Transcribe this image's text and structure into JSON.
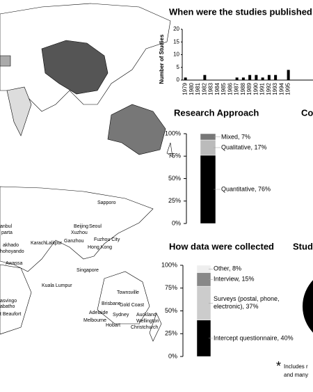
{
  "chart_data": [
    {
      "type": "bar",
      "title": "When were the studies published",
      "y_label": "Number of Studies",
      "categories": [
        "1979",
        "1980",
        "1981",
        "1982",
        "1983",
        "1984",
        "1985",
        "1986",
        "1987",
        "1988",
        "1989",
        "1990",
        "1991",
        "1992",
        "1993",
        "1994",
        "1995"
      ],
      "values": [
        1,
        0,
        0,
        2,
        0,
        0,
        0,
        0,
        1,
        1,
        2,
        2,
        1,
        2,
        2,
        0,
        4
      ],
      "color": "#000000",
      "ylim": [
        0,
        20
      ],
      "yticks": [
        0,
        5,
        10,
        15,
        20
      ]
    },
    {
      "type": "stacked-bar",
      "title": "Research Approach",
      "ylim": [
        0,
        100
      ],
      "yticks": [
        {
          "value": 0,
          "label": "0%"
        },
        {
          "value": 25,
          "label": "25%"
        },
        {
          "value": 50,
          "label": "50%"
        },
        {
          "value": 75,
          "label": "75%"
        },
        {
          "value": 100,
          "label": "100%"
        }
      ],
      "series": [
        {
          "color": "#000000",
          "values": [
            76
          ],
          "value_labels": [
            "Quantitative, 76%"
          ]
        },
        {
          "color": "#bbbbbb",
          "values": [
            17
          ],
          "value_labels": [
            "Qualitative, 17%"
          ]
        },
        {
          "color": "#777777",
          "values": [
            7
          ],
          "value_labels": [
            "Mixed, 7%"
          ]
        }
      ]
    },
    {
      "type": "stacked-bar",
      "title": "How data were collected",
      "ylim": [
        0,
        100
      ],
      "yticks": [
        {
          "value": 0,
          "label": "0%"
        },
        {
          "value": 25,
          "label": "25%"
        },
        {
          "value": 50,
          "label": "50%"
        },
        {
          "value": 75,
          "label": "75%"
        },
        {
          "value": 100,
          "label": "100%"
        }
      ],
      "series": [
        {
          "color": "#000000",
          "values": [
            40
          ],
          "value_labels": [
            "Intercept questionnaire, 40%"
          ]
        },
        {
          "color": "#cccccc",
          "values": [
            37
          ],
          "value_labels": [
            "Surveys (postal, phone, electronic), 37%"
          ]
        },
        {
          "color": "#888888",
          "values": [
            15
          ],
          "value_labels": [
            "Interview, 15%"
          ]
        },
        {
          "color": "#eeeeee",
          "values": [
            8
          ],
          "value_labels": [
            "Other, 8%"
          ]
        }
      ]
    }
  ],
  "cut_headings": [
    "Co",
    "Stud"
  ],
  "footnote": {
    "marker": "*",
    "lines": [
      "Includes r",
      "and many"
    ]
  },
  "cities": [
    "Sapporo",
    "Beijing",
    "Seoul",
    "Xuzhou",
    "Fuzhou City",
    "Ganzhou",
    "Hong Kong",
    "Lalitpur",
    "Karachi",
    "Kuala Lumpur",
    "Singapore",
    "Townsville",
    "Brisbane",
    "Gold Coast",
    "Adelaide",
    "Sydney",
    "Auckland",
    "Melbourne",
    "Wellington",
    "Hobart",
    "Christchurch",
    "anbul",
    "parta",
    "akhado",
    "hohoyando",
    "Awassa",
    "asvingo",
    "abatho",
    "t Beaufort"
  ]
}
